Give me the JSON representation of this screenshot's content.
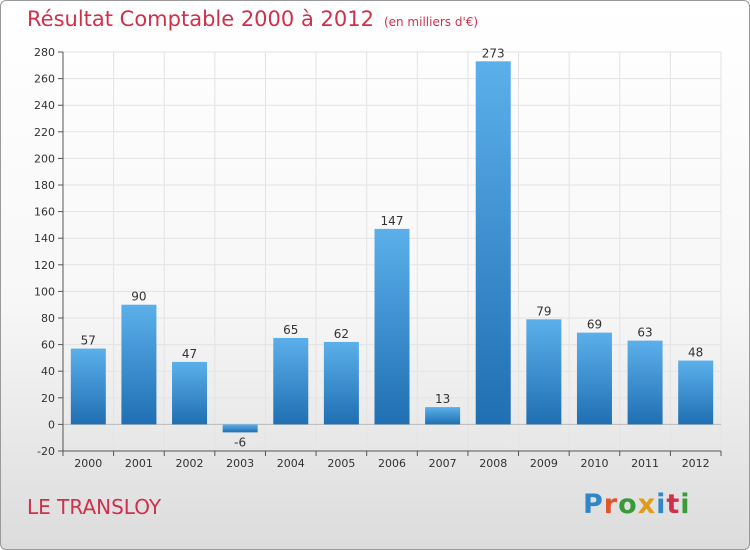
{
  "header": {
    "title": "Résultat Comptable 2000 à 2012",
    "unit": "(en milliers d'€)"
  },
  "footer": {
    "commune": "LE TRANSLOY",
    "logo_text": "Proxiti"
  },
  "colors": {
    "title": "#d0304b",
    "bar_top": "#5bb0ea",
    "bar_bottom": "#1f6fb2",
    "grid": "#e3e3e3",
    "axis": "#555555"
  },
  "chart_data": {
    "type": "bar",
    "title": "Résultat Comptable 2000 à 2012",
    "subtitle": "(en milliers d'€)",
    "xlabel": "",
    "ylabel": "",
    "categories": [
      "2000",
      "2001",
      "2002",
      "2003",
      "2004",
      "2005",
      "2006",
      "2007",
      "2008",
      "2009",
      "2010",
      "2011",
      "2012"
    ],
    "values": [
      57,
      90,
      47,
      -6,
      65,
      62,
      147,
      13,
      273,
      79,
      69,
      63,
      48
    ],
    "ylim": [
      -20,
      280
    ],
    "yticks": [
      -20,
      0,
      20,
      40,
      60,
      80,
      100,
      120,
      140,
      160,
      180,
      200,
      220,
      240,
      260,
      280
    ],
    "grid": true,
    "legend": "none"
  }
}
